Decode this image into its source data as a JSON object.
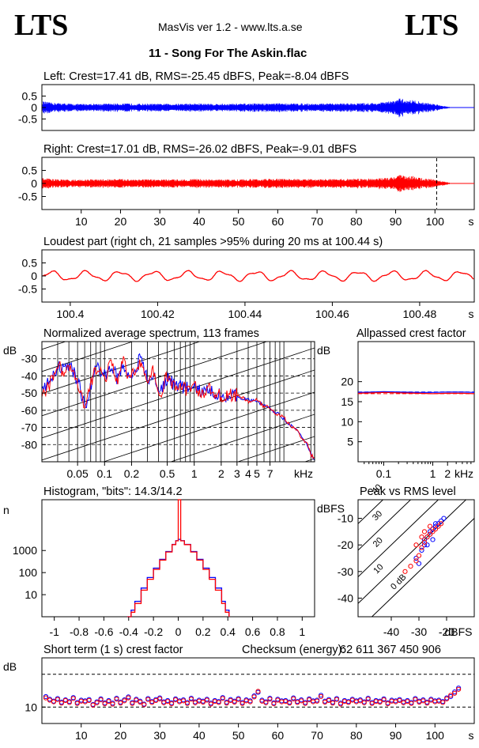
{
  "header": {
    "logo_left": "LTS",
    "logo_right": "LTS",
    "app_title": "MasVis ver 1.2 - www.lts.a.se",
    "song_title": "11 - Song For The Askin.flac"
  },
  "colors": {
    "left": "#0000ff",
    "right": "#ff0000",
    "axis": "#000000"
  },
  "chart_data": [
    {
      "id": "left-waveform",
      "type": "line",
      "title": "Left: Crest=17.41 dB, RMS=-25.45 dBFS, Peak=-8.04 dBFS",
      "yticks": [
        "0.5",
        "0",
        "-0.5"
      ],
      "y_tick_values": [
        0.5,
        0,
        -0.5
      ],
      "ylim": [
        -1,
        1
      ],
      "xlim": [
        0,
        110
      ],
      "envelope_time": [
        0,
        2,
        4,
        6,
        8,
        10,
        15,
        20,
        25,
        30,
        35,
        40,
        45,
        50,
        55,
        60,
        65,
        70,
        75,
        80,
        85,
        87,
        89,
        90,
        91,
        92,
        93,
        94,
        95,
        96,
        97,
        98,
        99,
        100,
        101,
        102,
        103,
        104,
        105
      ],
      "envelope_amplitude": [
        0.28,
        0.22,
        0.2,
        0.18,
        0.16,
        0.16,
        0.17,
        0.18,
        0.17,
        0.16,
        0.17,
        0.18,
        0.16,
        0.17,
        0.18,
        0.19,
        0.18,
        0.17,
        0.18,
        0.19,
        0.2,
        0.24,
        0.28,
        0.32,
        0.4,
        0.36,
        0.3,
        0.34,
        0.3,
        0.26,
        0.22,
        0.2,
        0.18,
        0.16,
        0.12,
        0.08,
        0.05,
        0.02,
        0.01
      ]
    },
    {
      "id": "right-waveform",
      "type": "line",
      "title": "Right: Crest=17.01 dB, RMS=-26.02 dBFS, Peak=-9.01 dBFS",
      "yticks": [
        "0.5",
        "0",
        "-0.5"
      ],
      "y_tick_values": [
        0.5,
        0,
        -0.5
      ],
      "ylim": [
        -1,
        1
      ],
      "xlim": [
        0,
        110
      ],
      "xticks": [
        "10",
        "20",
        "30",
        "40",
        "50",
        "60",
        "70",
        "80",
        "90",
        "100",
        "s"
      ],
      "x_tick_values": [
        10,
        20,
        30,
        40,
        50,
        60,
        70,
        80,
        90,
        100
      ],
      "marker_time": 100.44,
      "envelope_time": [
        0,
        2,
        4,
        6,
        8,
        10,
        15,
        20,
        25,
        30,
        35,
        40,
        45,
        50,
        55,
        60,
        65,
        70,
        75,
        80,
        85,
        87,
        89,
        90,
        91,
        92,
        93,
        94,
        95,
        96,
        97,
        98,
        99,
        100,
        101,
        102,
        103,
        104,
        105
      ],
      "envelope_amplitude": [
        0.22,
        0.18,
        0.16,
        0.15,
        0.15,
        0.15,
        0.16,
        0.17,
        0.16,
        0.15,
        0.16,
        0.17,
        0.15,
        0.16,
        0.17,
        0.18,
        0.17,
        0.16,
        0.17,
        0.18,
        0.19,
        0.22,
        0.26,
        0.28,
        0.34,
        0.3,
        0.26,
        0.3,
        0.26,
        0.22,
        0.2,
        0.18,
        0.17,
        0.15,
        0.12,
        0.08,
        0.05,
        0.02,
        0.01
      ]
    },
    {
      "id": "loudest-part",
      "type": "line",
      "title": "Loudest part (right ch, 21 samples >95% during 20 ms at 100.44 s)",
      "yticks": [
        "0.5",
        "0",
        "-0.5"
      ],
      "y_tick_values": [
        0.5,
        0,
        -0.5
      ],
      "ylim": [
        -1,
        1
      ],
      "xlim": [
        100.3935,
        100.4925
      ],
      "xticks": [
        "100.4",
        "100.42",
        "100.44",
        "100.46",
        "100.48",
        "s"
      ],
      "x_tick_values": [
        100.4,
        100.42,
        100.44,
        100.46,
        100.48
      ],
      "waveform_period_s": 0.0078,
      "waveform_amplitude": 0.2
    },
    {
      "id": "spectrum",
      "type": "line",
      "title": "Normalized average spectrum, 113 frames",
      "ylabel": "dB",
      "yticks": [
        "-30",
        "-40",
        "-50",
        "-60",
        "-70",
        "-80"
      ],
      "y_tick_values": [
        -30,
        -40,
        -50,
        -60,
        -70,
        -80
      ],
      "ylim": [
        -90,
        -20
      ],
      "xlim": [
        0.02,
        22
      ],
      "xscale": "log",
      "xticks": [
        "0.05",
        "0.1",
        "0.2",
        "0.5",
        "1",
        "2",
        "3",
        "4",
        "5",
        "7",
        "kHz"
      ],
      "x_tick_values": [
        0.05,
        0.1,
        0.2,
        0.5,
        1,
        2,
        3,
        4,
        5,
        7
      ],
      "freq_khz": [
        0.02,
        0.025,
        0.03,
        0.035,
        0.04,
        0.05,
        0.06,
        0.07,
        0.08,
        0.09,
        0.1,
        0.12,
        0.14,
        0.16,
        0.18,
        0.2,
        0.25,
        0.3,
        0.35,
        0.4,
        0.5,
        0.6,
        0.7,
        0.8,
        1,
        1.2,
        1.5,
        2,
        3,
        4,
        5,
        6,
        7,
        8,
        10,
        12,
        14,
        16,
        18,
        20,
        22
      ],
      "series": [
        {
          "name": "",
          "color": "#0000ff",
          "values": [
            -50,
            -42,
            -34,
            -37,
            -33,
            -43,
            -58,
            -47,
            -33,
            -38,
            -40,
            -34,
            -42,
            -33,
            -38,
            -41,
            -29,
            -43,
            -39,
            -50,
            -41,
            -45,
            -46,
            -47,
            -47,
            -49,
            -49,
            -51,
            -52,
            -54,
            -55,
            -57,
            -59,
            -61,
            -65,
            -69,
            -72,
            -76,
            -80,
            -85,
            -89
          ]
        },
        {
          "name": "",
          "color": "#ff0000",
          "values": [
            -51,
            -44,
            -32,
            -39,
            -34,
            -45,
            -60,
            -45,
            -35,
            -37,
            -42,
            -32,
            -44,
            -31,
            -40,
            -39,
            -31,
            -45,
            -37,
            -52,
            -40,
            -47,
            -45,
            -48,
            -46,
            -50,
            -48,
            -52,
            -51,
            -55,
            -54,
            -58,
            -58,
            -62,
            -64,
            -70,
            -71,
            -77,
            -79,
            -86,
            -88
          ]
        }
      ]
    },
    {
      "id": "allpassed-crest",
      "type": "line",
      "title": "Allpassed crest factor",
      "ylabel": "dB",
      "yticks": [
        "20",
        "15",
        "10",
        "5"
      ],
      "y_tick_values": [
        20,
        15,
        10,
        5
      ],
      "ylim": [
        0,
        30
      ],
      "xlim": [
        0.03,
        7
      ],
      "xscale": "log",
      "xticks": [
        "0.1",
        "1",
        "2",
        "kHz"
      ],
      "x_tick_values": [
        0.1,
        1,
        2
      ],
      "freq_khz": [
        0.03,
        0.06,
        0.1,
        0.2,
        0.5,
        1,
        2,
        4,
        7
      ],
      "series": [
        {
          "name": "",
          "color": "#0000ff",
          "values": [
            17.3,
            17.4,
            17.5,
            17.4,
            17.3,
            17.3,
            17.4,
            17.4,
            17.3
          ]
        },
        {
          "name": "",
          "color": "#ff0000",
          "values": [
            17.1,
            17.2,
            17.3,
            17.2,
            17.1,
            17.0,
            17.1,
            17.1,
            17.0
          ]
        }
      ],
      "reference_lines": [
        {
          "color": "#0000ff",
          "y": 17.41
        },
        {
          "color": "#ff0000",
          "y": 17.01
        }
      ]
    },
    {
      "id": "histogram",
      "type": "line",
      "title": "Histogram, \"bits\": 14.3/14.2",
      "ylabel": "n",
      "yticks": [
        "1000",
        "100",
        "10"
      ],
      "y_tick_values": [
        1000,
        100,
        10
      ],
      "yscale": "log",
      "ylim": [
        1,
        200000
      ],
      "xlim": [
        -1.1,
        1.1
      ],
      "xticks": [
        "-1",
        "-0.8",
        "-0.6",
        "-0.4",
        "-0.2",
        "0",
        "0.2",
        "0.4",
        "0.6",
        "0.8",
        "1"
      ],
      "x_tick_values": [
        -1,
        -0.8,
        -0.6,
        -0.4,
        -0.2,
        0,
        0.2,
        0.4,
        0.6,
        0.8,
        1
      ],
      "x": [
        -0.41,
        -0.38,
        -0.35,
        -0.3,
        -0.25,
        -0.2,
        -0.15,
        -0.1,
        -0.05,
        -0.02,
        0,
        0.02,
        0.05,
        0.1,
        0.15,
        0.2,
        0.25,
        0.3,
        0.35,
        0.38,
        0.41
      ],
      "series": [
        {
          "name": "",
          "color": "#0000ff",
          "values": [
            1,
            2,
            5,
            20,
            60,
            160,
            400,
            900,
            1900,
            2800,
            3200,
            2800,
            1900,
            900,
            400,
            160,
            60,
            20,
            5,
            2,
            1
          ]
        },
        {
          "name": "",
          "color": "#ff0000",
          "values": [
            1,
            1.6,
            4,
            16,
            50,
            140,
            370,
            860,
            1850,
            2750,
            200000,
            2750,
            1850,
            860,
            370,
            140,
            50,
            16,
            4,
            1.6,
            1
          ]
        }
      ]
    },
    {
      "id": "peak-vs-rms",
      "type": "scatter",
      "title": "Peak vs RMS level",
      "ylabel": "dBFS",
      "xlabel": "dBFS",
      "yticks": [
        "-10",
        "-20",
        "-30",
        "-40"
      ],
      "y_tick_values": [
        -10,
        -20,
        -30,
        -40
      ],
      "xticks": [
        "-40",
        "-30",
        "-20"
      ],
      "x_tick_values": [
        -40,
        -30,
        -20
      ],
      "xlim": [
        -52,
        -10
      ],
      "ylim": [
        -47,
        -3
      ],
      "crest_lines": [
        {
          "label": "40",
          "offset": 40
        },
        {
          "label": "30",
          "offset": 30
        },
        {
          "label": "20",
          "offset": 20
        },
        {
          "label": "10",
          "offset": 10
        },
        {
          "label": "0 dB",
          "offset": 0
        }
      ],
      "series": [
        {
          "name": "",
          "color": "#0000ff",
          "x": [
            -31,
            -29,
            -28,
            -27,
            -26,
            -25,
            -24,
            -23,
            -22,
            -21,
            -30,
            -28,
            -26,
            -24,
            -25,
            -27
          ],
          "y": [
            -25,
            -22,
            -18,
            -17,
            -15,
            -14,
            -13,
            -12,
            -11,
            -10,
            -27,
            -20,
            -16,
            -12,
            -18,
            -20
          ]
        },
        {
          "name": "",
          "color": "#ff0000",
          "x": [
            -35,
            -33,
            -31,
            -30,
            -29,
            -28,
            -27,
            -26,
            -25,
            -24,
            -23,
            -22,
            -28,
            -26,
            -29,
            -31
          ],
          "y": [
            -30,
            -28,
            -26,
            -24,
            -21,
            -19,
            -17,
            -16,
            -15,
            -14,
            -13,
            -12,
            -15,
            -13,
            -17,
            -20
          ]
        }
      ]
    },
    {
      "id": "short-term-crest",
      "type": "scatter",
      "title": "Short term (1 s) crest factor",
      "ylabel": "dB",
      "yticks": [
        "10"
      ],
      "y_tick_values": [
        10
      ],
      "ylim": [
        5,
        25
      ],
      "xlim": [
        0,
        110
      ],
      "reference_lines": [
        {
          "y": 20
        },
        {
          "y": 10
        }
      ],
      "xticks": [
        "10",
        "20",
        "30",
        "40",
        "50",
        "60",
        "70",
        "80",
        "90",
        "100",
        "s"
      ],
      "x_tick_values": [
        10,
        20,
        30,
        40,
        50,
        60,
        70,
        80,
        90,
        100
      ],
      "x": [
        1,
        2,
        3,
        4,
        5,
        6,
        7,
        8,
        9,
        10,
        11,
        12,
        13,
        14,
        15,
        16,
        17,
        18,
        19,
        20,
        21,
        22,
        23,
        24,
        25,
        26,
        27,
        28,
        29,
        30,
        31,
        32,
        33,
        34,
        35,
        36,
        37,
        38,
        39,
        40,
        41,
        42,
        43,
        44,
        45,
        46,
        47,
        48,
        49,
        50,
        51,
        52,
        53,
        54,
        55,
        56,
        57,
        58,
        59,
        60,
        61,
        62,
        63,
        64,
        65,
        66,
        67,
        68,
        69,
        70,
        71,
        72,
        73,
        74,
        75,
        76,
        77,
        78,
        79,
        80,
        81,
        82,
        83,
        84,
        85,
        86,
        87,
        88,
        89,
        90,
        91,
        92,
        93,
        94,
        95,
        96,
        97,
        98,
        99,
        100,
        101,
        102,
        103,
        104,
        105,
        106
      ],
      "series": [
        {
          "name": "",
          "color": "#0000ff",
          "values": [
            13.2,
            12.4,
            11.8,
            12.6,
            11.5,
            12.2,
            11.7,
            12.9,
            11.4,
            12.1,
            11.9,
            12.3,
            10.8,
            11.6,
            12.5,
            11.3,
            12.0,
            11.2,
            12.7,
            11.5,
            12.2,
            13.1,
            11.4,
            12.4,
            11.8,
            10.9,
            12.6,
            11.7,
            12.3,
            12.8,
            11.6,
            12.0,
            11.3,
            12.5,
            11.9,
            12.2,
            11.4,
            12.7,
            11.6,
            12.1,
            11.8,
            12.4,
            11.2,
            12.0,
            11.7,
            12.9,
            11.5,
            12.3,
            11.8,
            12.6,
            11.4,
            12.2,
            11.9,
            13.4,
            14.5,
            12.1,
            11.6,
            12.7,
            11.3,
            12.4,
            11.9,
            12.0,
            11.5,
            12.8,
            11.7,
            12.2,
            11.4,
            12.5,
            11.9,
            12.1,
            13.6,
            11.8,
            12.3,
            11.5,
            12.6,
            11.2,
            12.0,
            11.7,
            12.4,
            11.9,
            12.2,
            11.6,
            12.7,
            11.4,
            12.0,
            11.8,
            12.5,
            11.3,
            12.1,
            11.9,
            12.3,
            11.6,
            12.0,
            11.4,
            12.6,
            11.8,
            12.2,
            11.5,
            12.4,
            11.9,
            12.1,
            11.7,
            12.8,
            13.2,
            14.6,
            15.8
          ]
        },
        {
          "name": "",
          "color": "#ff0000",
          "values": [
            12.8,
            12.1,
            11.6,
            12.3,
            11.2,
            12.0,
            11.4,
            12.6,
            11.1,
            11.8,
            11.6,
            12.0,
            10.6,
            11.3,
            12.2,
            11.0,
            11.7,
            10.9,
            12.4,
            11.2,
            11.9,
            12.8,
            11.1,
            12.1,
            11.5,
            10.7,
            12.3,
            11.4,
            12.0,
            12.5,
            11.3,
            11.7,
            11.0,
            12.2,
            11.6,
            11.9,
            11.1,
            12.4,
            11.3,
            11.8,
            11.5,
            12.1,
            10.9,
            11.7,
            11.4,
            12.6,
            11.2,
            12.0,
            11.5,
            12.3,
            11.1,
            11.9,
            11.6,
            13.1,
            14.8,
            11.8,
            11.3,
            12.4,
            11.0,
            12.1,
            11.6,
            11.7,
            11.2,
            12.5,
            11.4,
            11.9,
            11.1,
            12.2,
            11.6,
            11.8,
            13.2,
            11.5,
            12.0,
            11.2,
            12.3,
            10.9,
            11.7,
            11.4,
            12.1,
            11.6,
            11.9,
            11.3,
            12.4,
            11.1,
            11.7,
            11.5,
            12.2,
            11.0,
            11.8,
            11.6,
            12.0,
            11.3,
            11.7,
            11.1,
            12.3,
            11.5,
            11.9,
            11.2,
            12.1,
            11.6,
            11.8,
            11.4,
            12.5,
            13.6,
            14.2,
            15.4
          ]
        }
      ],
      "checksum_label": "Checksum (energy):",
      "checksum_value": "62 611 367 450 906"
    }
  ]
}
